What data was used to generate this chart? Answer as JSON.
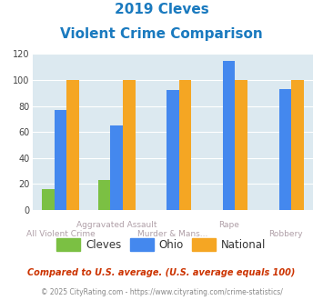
{
  "title_line1": "2019 Cleves",
  "title_line2": "Violent Crime Comparison",
  "categories": [
    "All Violent Crime",
    "Aggravated Assault",
    "Murder & Mans...",
    "Rape",
    "Robbery"
  ],
  "cleves": [
    16,
    23,
    null,
    null,
    null
  ],
  "ohio": [
    77,
    65,
    92,
    115,
    93
  ],
  "national": [
    100,
    100,
    100,
    100,
    100
  ],
  "cleves_color": "#7bc043",
  "ohio_color": "#4488ee",
  "national_color": "#f5a623",
  "bg_color": "#dce9f0",
  "ylim": [
    0,
    120
  ],
  "yticks": [
    0,
    20,
    40,
    60,
    80,
    100,
    120
  ],
  "footnote": "Compared to U.S. average. (U.S. average equals 100)",
  "copyright": "© 2025 CityRating.com - https://www.cityrating.com/crime-statistics/",
  "title_color": "#1a7abf",
  "footnote_color": "#cc3300",
  "copyright_color": "#888888",
  "xlabel_color": "#b0a0a8",
  "upper_labels": [
    "",
    "Aggravated Assault",
    "",
    "Rape",
    ""
  ],
  "lower_labels": [
    "All Violent Crime",
    "",
    "Murder & Mans...",
    "",
    "Robbery"
  ]
}
